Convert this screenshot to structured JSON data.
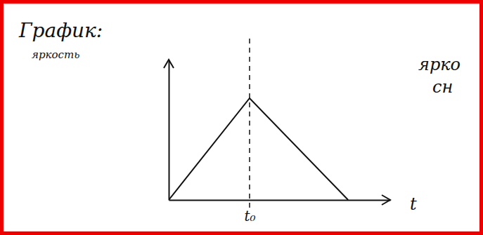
{
  "chart_data": {
    "type": "line",
    "title": "График:",
    "y_label": "яркость",
    "x_label": "t",
    "x": [
      0,
      3.65,
      8.1
    ],
    "values": [
      0,
      7.25,
      0
    ],
    "color": "#111111",
    "line_style": "solid",
    "xlim": [
      0,
      10
    ],
    "ylim": [
      0,
      10
    ],
    "xticks": [
      {
        "value": 3.65,
        "label": "t₀"
      }
    ],
    "yticks": [],
    "grid": "x",
    "tick_labels": "x",
    "annotations": [
      "ярко",
      "сн"
    ]
  }
}
